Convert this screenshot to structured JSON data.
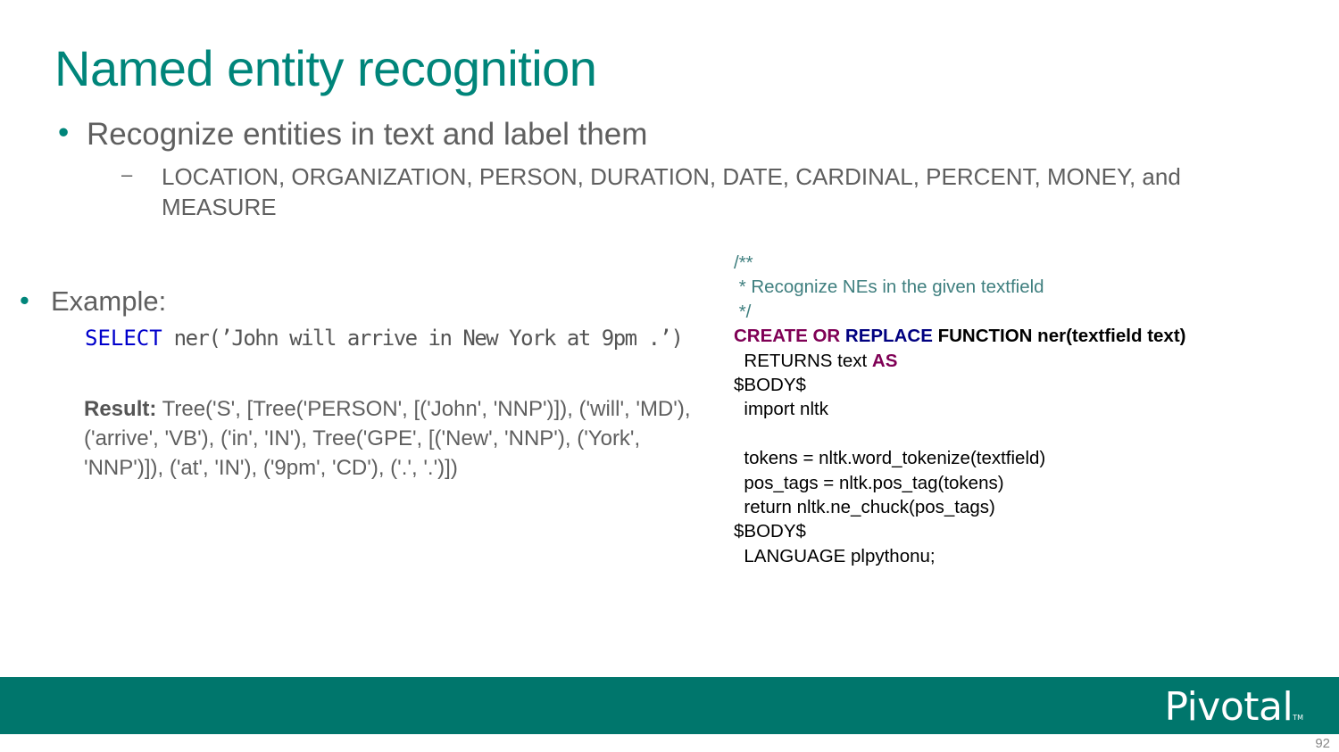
{
  "slide": {
    "title": "Named entity recognition",
    "bullet": "Recognize entities in text and label them",
    "sub_bullet_marker": "–",
    "sub_bullet": "LOCATION, ORGANIZATION, PERSON, DURATION, DATE, CARDINAL, PERCENT, MONEY, and MEASURE",
    "example_label": "Example:",
    "sql_keyword": "SELECT",
    "sql_rest": " ner(’John will arrive in New York at 9pm .’)",
    "result_label": "Result:",
    "result_text": "  Tree('S', [Tree('PERSON', [('John', 'NNP')]), ('will', 'MD'), ('arrive', 'VB'), ('in', 'IN'), Tree('GPE', [('New', 'NNP'), ('York', 'NNP')]), ('at', 'IN'), ('9pm', 'CD'), ('.', '.')])",
    "page_number": "92"
  },
  "code": {
    "comment_1": "/**",
    "comment_2": " * Recognize NEs in the given textfield",
    "comment_3": " */",
    "create": "CREATE OR ",
    "replace": "REPLACE",
    "function_sig": " FUNCTION ner(textfield text)",
    "returns": "  RETURNS text ",
    "as": "AS",
    "body_start": "$BODY$",
    "import": "  import nltk",
    "blank": "",
    "tokens": "  tokens = nltk.word_tokenize(textfield)",
    "pos_tags": "  pos_tags = nltk.pos_tag(tokens)",
    "return": "  return nltk.ne_chuck(pos_tags)",
    "body_end": "$BODY$",
    "language": "  LANGUAGE plpythonu;"
  },
  "footer": {
    "logo_text": "Pivotal",
    "logo_tm": "TM",
    "color": "#00766c"
  },
  "colors": {
    "accent": "#00857a",
    "comment": "#3f7f7f",
    "keyword_purple": "#7f0055",
    "keyword_navy": "#000080",
    "sql_keyword": "#0000cc"
  }
}
